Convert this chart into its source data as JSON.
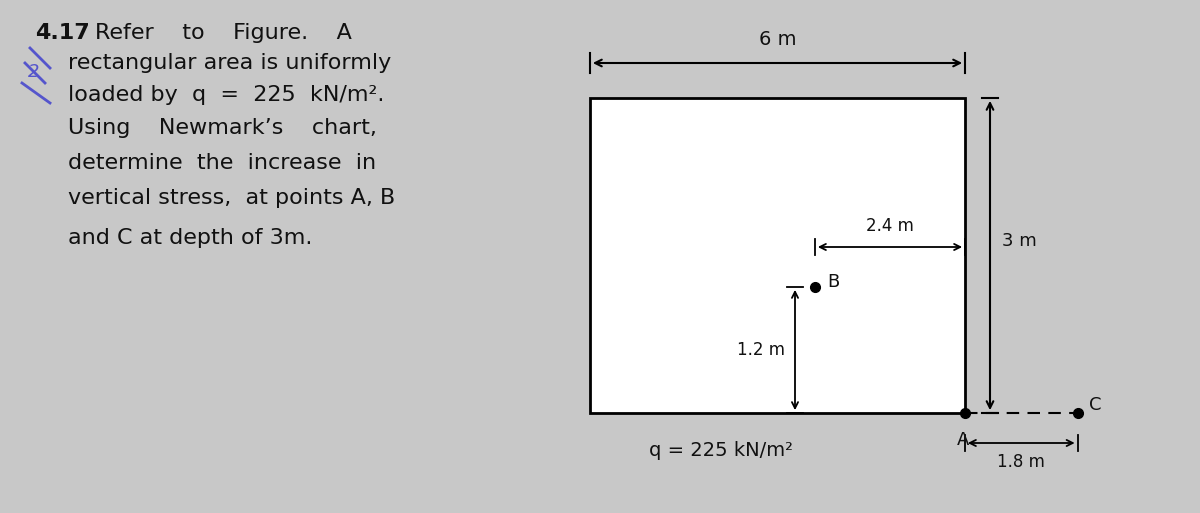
{
  "bg_color": "#c8c8c8",
  "page_color": "#d4d4d4",
  "text_color": "#111111",
  "problem_number": "4.17",
  "line1": "Refer    to    Figure.    A",
  "line2": "rectangular area is uniformly",
  "line3": "loaded by  q  =  225  kN/m².",
  "line4": "Using    Newmark’s    chart,",
  "line5": "determine  the  increase  in",
  "line6": "vertical stress,  at points A, B",
  "line7": "and C at depth of 3m.",
  "dim_6m": "6 m",
  "dim_3m": "3 m",
  "dim_24m": "2.4 m",
  "dim_12m": "1.2 m",
  "dim_18m": "1.8 m",
  "q_label": "q = 225 kN/m²",
  "pt_A": "A",
  "pt_B": "B",
  "pt_C": "C"
}
